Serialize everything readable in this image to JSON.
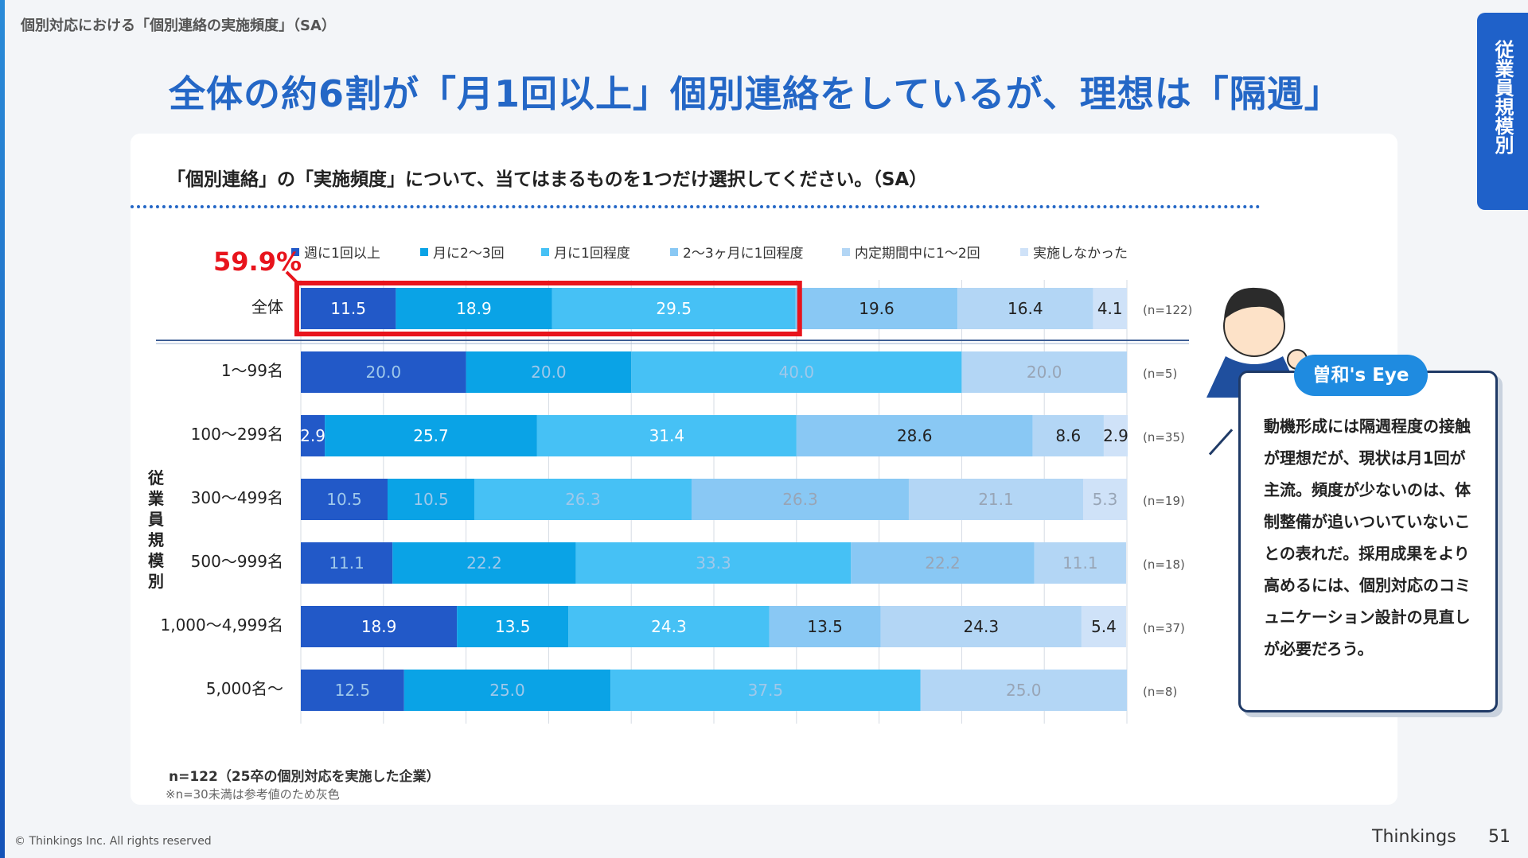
{
  "breadcrumb": "個別対応における「個別連絡の実施頻度」（SA）",
  "headline": "全体の約6割が「月1回以上」個別連絡をしているが、理想は「隔週」",
  "side_tab": "従業員規模別",
  "question": "「個別連絡」の「実施頻度」について、当てはまるものを1つだけ選択してください。（SA）",
  "highlight_label": "59.9%",
  "footnote_n": "n=122（25卒の個別対応を実施した企業）",
  "footnote_ref": "※n=30未満は参考値のため灰色",
  "copyright": "© Thinkings Inc. All rights reserved",
  "brand": "Thinkings",
  "page_number": "51",
  "eye": {
    "badge": "曽和's Eye",
    "text": "動機形成には隔週程度の接触が理想だが、現状は月1回が主流。頻度が少ないのは、体制整備が追いついていないことの表れだ。採用成果をより高めるには、個別対応のコミュニケーション設計の見直しが必要だろう。"
  },
  "colors": {
    "accent": "#2467c6",
    "highlight": "#e8141c",
    "series": [
      "#2259c8",
      "#0aa3e6",
      "#46c1f5",
      "#89c8f4",
      "#b3d6f5",
      "#cfe2f8"
    ]
  },
  "chart_data": {
    "type": "bar",
    "orientation": "horizontal",
    "stacked": true,
    "xlim": [
      0,
      100
    ],
    "grid": true,
    "legend_position": "top",
    "group_label": "従業員規模別",
    "categories": [
      "全体",
      "1〜99名",
      "100〜299名",
      "300〜499名",
      "500〜999名",
      "1,000〜4,999名",
      "5,000名〜"
    ],
    "n_labels": [
      "(n=122)",
      "(n=5)",
      "(n=35)",
      "(n=19)",
      "(n=18)",
      "(n=37)",
      "(n=8)"
    ],
    "reference_only": [
      false,
      true,
      false,
      true,
      true,
      false,
      true
    ],
    "series": [
      {
        "name": "週に1回以上",
        "values": [
          11.5,
          20.0,
          2.9,
          10.5,
          11.1,
          18.9,
          12.5
        ]
      },
      {
        "name": "月に2〜3回",
        "values": [
          18.9,
          20.0,
          25.7,
          10.5,
          22.2,
          13.5,
          25.0
        ]
      },
      {
        "name": "月に1回程度",
        "values": [
          29.5,
          40.0,
          31.4,
          26.3,
          33.3,
          24.3,
          37.5
        ]
      },
      {
        "name": "2〜3ヶ月に1回程度",
        "values": [
          19.6,
          0,
          28.6,
          26.3,
          22.2,
          13.5,
          0
        ]
      },
      {
        "name": "内定期間中に1〜2回",
        "values": [
          16.4,
          20.0,
          8.6,
          21.1,
          11.1,
          24.3,
          25.0
        ]
      },
      {
        "name": "実施しなかった",
        "values": [
          4.1,
          0,
          2.9,
          5.3,
          0,
          5.4,
          0
        ]
      }
    ]
  }
}
